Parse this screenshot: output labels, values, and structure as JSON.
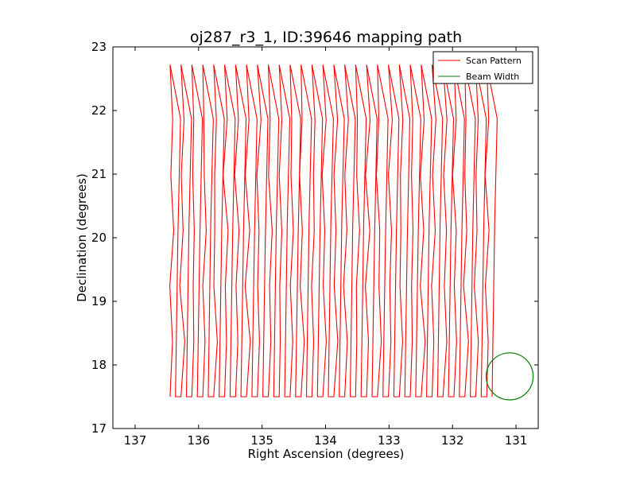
{
  "chart_data": {
    "type": "line",
    "title": "oj287_r3_1, ID:39646 mapping path",
    "xlabel": "Right Ascension (degrees)",
    "ylabel": "Declination (degrees)",
    "xlim": [
      137.35,
      130.65
    ],
    "ylim": [
      17,
      23
    ],
    "x_inverted": true,
    "xticks": [
      137,
      136,
      135,
      134,
      133,
      132,
      131
    ],
    "yticks": [
      17,
      18,
      19,
      20,
      21,
      22,
      23
    ],
    "grid": false,
    "legend_placement": "top-right",
    "series": [
      {
        "name": "Scan Pattern",
        "color": "#ff0000",
        "sweep": {
          "x_start": 136.45,
          "column_spacing": 0.172,
          "columns": 30,
          "y_bottom": 17.5,
          "y_top": 22.72,
          "x_drift_per_leg": 0.11
        }
      },
      {
        "name": "Beam Width",
        "color": "#008000",
        "center": [
          131.1,
          17.82
        ],
        "radius": 0.37
      }
    ]
  }
}
